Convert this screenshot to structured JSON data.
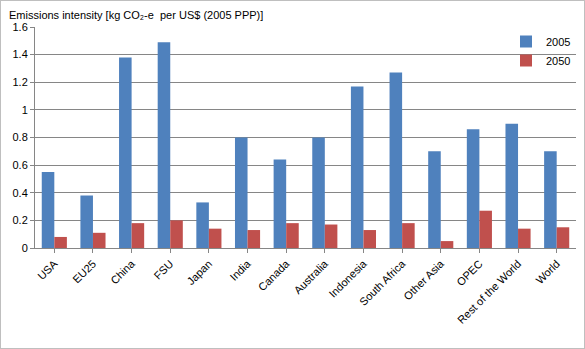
{
  "chart_data": {
    "type": "bar",
    "ylabel": "Emissions intensity [kg CO₂-e  per US$ (2005 PPP)]",
    "categories": [
      "USA",
      "EU25",
      "China",
      "FSU",
      "Japan",
      "India",
      "Canada",
      "Australia",
      "Indonesia",
      "South Africa",
      "Other Asia",
      "OPEC",
      "Rest of the World",
      "World"
    ],
    "series": [
      {
        "name": "2005",
        "color": "#4f81bd",
        "values": [
          0.55,
          0.38,
          1.38,
          1.49,
          0.33,
          0.8,
          0.64,
          0.8,
          1.17,
          1.27,
          0.7,
          0.86,
          0.9,
          0.7
        ]
      },
      {
        "name": "2050",
        "color": "#c0504d",
        "values": [
          0.08,
          0.11,
          0.18,
          0.2,
          0.14,
          0.13,
          0.18,
          0.17,
          0.13,
          0.18,
          0.05,
          0.27,
          0.14,
          0.15
        ]
      }
    ],
    "ylim": [
      0,
      1.6
    ],
    "yticks": [
      0,
      0.2,
      0.4,
      0.6,
      0.8,
      1,
      1.2,
      1.4,
      1.6
    ],
    "grid": true,
    "legend": "top right"
  }
}
